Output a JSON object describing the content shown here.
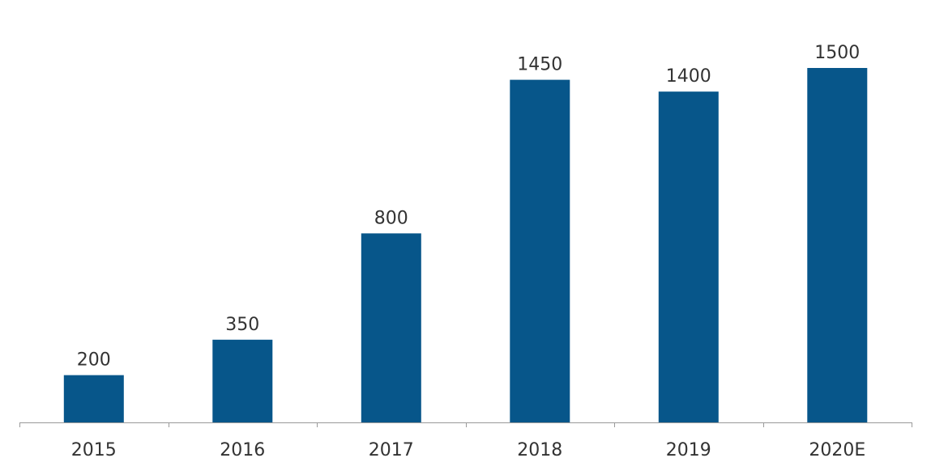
{
  "chart_data": {
    "type": "bar",
    "categories": [
      "2015",
      "2016",
      "2017",
      "2018",
      "2019",
      "2020E"
    ],
    "values": [
      200,
      350,
      800,
      1450,
      1400,
      1500
    ],
    "data_labels": [
      "200",
      "350",
      "800",
      "1450",
      "1400",
      "1500"
    ],
    "title": "",
    "xlabel": "",
    "ylabel": "",
    "ylim": [
      0,
      1500
    ],
    "grid": false,
    "legend": "none",
    "bar_color": "#07568A"
  }
}
